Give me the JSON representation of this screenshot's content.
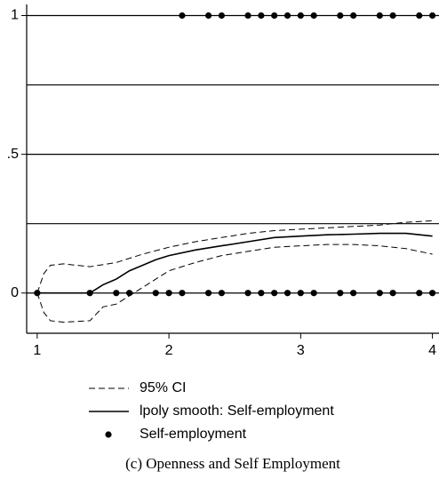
{
  "chart_data": {
    "type": "line",
    "caption": "(c) Openness and Self Employment",
    "xlim": [
      0.92,
      4.05
    ],
    "ylim": [
      -0.145,
      1.04
    ],
    "xticks": [
      1,
      2,
      3,
      4
    ],
    "yticks": [
      0,
      {
        "value": 0.5,
        "label": ".5"
      },
      1
    ],
    "ygrid": [
      0,
      0.25,
      0.5,
      0.75,
      1
    ],
    "series": [
      {
        "name": "95% CI",
        "kind": "line",
        "dash": true,
        "color": "#000000",
        "x": [
          1,
          1.05,
          1.1,
          1.2,
          1.4,
          1.6,
          1.8,
          2.0,
          2.2,
          2.4,
          2.6,
          2.8,
          3.0,
          3.2,
          3.4,
          3.6,
          3.8,
          4.0
        ],
        "values": [
          0,
          0.07,
          0.1,
          0.105,
          0.095,
          0.11,
          0.14,
          0.165,
          0.185,
          0.2,
          0.215,
          0.225,
          0.23,
          0.235,
          0.24,
          0.245,
          0.255,
          0.26
        ]
      },
      {
        "kind": "line",
        "dash": true,
        "color": "#000000",
        "x": [
          1,
          1.05,
          1.1,
          1.2,
          1.4,
          1.5,
          1.6,
          1.8,
          2.0,
          2.2,
          2.4,
          2.6,
          2.8,
          3.0,
          3.2,
          3.4,
          3.6,
          3.8,
          4.0
        ],
        "values": [
          0,
          -0.07,
          -0.1,
          -0.105,
          -0.1,
          -0.05,
          -0.04,
          0.02,
          0.08,
          0.11,
          0.135,
          0.15,
          0.165,
          0.17,
          0.175,
          0.175,
          0.17,
          0.16,
          0.14
        ]
      },
      {
        "name": "lpoly smooth: Self-employment",
        "kind": "line",
        "dash": false,
        "color": "#000000",
        "x": [
          1,
          1.4,
          1.5,
          1.6,
          1.7,
          1.8,
          1.9,
          2.0,
          2.2,
          2.4,
          2.6,
          2.8,
          3.0,
          3.2,
          3.4,
          3.6,
          3.8,
          4.0
        ],
        "values": [
          0,
          0,
          0.03,
          0.05,
          0.08,
          0.1,
          0.12,
          0.135,
          0.155,
          0.17,
          0.185,
          0.2,
          0.205,
          0.21,
          0.212,
          0.215,
          0.215,
          0.205
        ]
      },
      {
        "name": "Self-employment",
        "kind": "scatter",
        "color": "#000000",
        "x": [
          1,
          1.4,
          1.6,
          1.7,
          1.9,
          2.0,
          2.1,
          2.3,
          2.4,
          2.6,
          2.7,
          2.8,
          2.9,
          3.0,
          3.1,
          3.3,
          3.4,
          3.6,
          3.7,
          3.9,
          4.0,
          2.1,
          2.3,
          2.4,
          2.6,
          2.7,
          2.8,
          2.9,
          3.0,
          3.1,
          3.3,
          3.4,
          3.6,
          3.7,
          3.9,
          4.0
        ],
        "values": [
          0,
          0,
          0,
          0,
          0,
          0,
          0,
          0,
          0,
          0,
          0,
          0,
          0,
          0,
          0,
          0,
          0,
          0,
          0,
          0,
          0,
          1,
          1,
          1,
          1,
          1,
          1,
          1,
          1,
          1,
          1,
          1,
          1,
          1,
          1,
          1
        ]
      }
    ]
  }
}
